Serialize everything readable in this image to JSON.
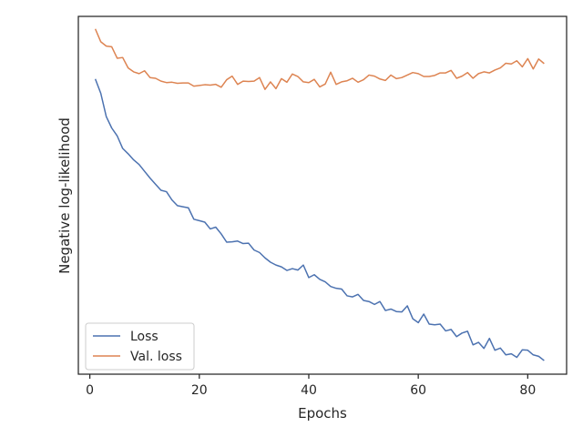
{
  "chart_data": {
    "type": "line",
    "title": "",
    "xlabel": "Epochs",
    "ylabel": "Negative log-likelihood",
    "xlim": [
      -2.1,
      87.1
    ],
    "ylim": [
      0,
      1
    ],
    "x_ticks": [
      0,
      20,
      40,
      60,
      80
    ],
    "y_ticks": [],
    "grid": false,
    "legend": {
      "placement": "lower-left",
      "entries": [
        "Loss",
        "Val. loss"
      ]
    },
    "x": [
      1,
      2,
      3,
      4,
      5,
      6,
      7,
      8,
      9,
      10,
      11,
      12,
      13,
      14,
      15,
      16,
      17,
      18,
      19,
      20,
      21,
      22,
      23,
      24,
      25,
      26,
      27,
      28,
      29,
      30,
      31,
      32,
      33,
      34,
      35,
      36,
      37,
      38,
      39,
      40,
      41,
      42,
      43,
      44,
      45,
      46,
      47,
      48,
      49,
      50,
      51,
      52,
      53,
      54,
      55,
      56,
      57,
      58,
      59,
      60,
      61,
      62,
      63,
      64,
      65,
      66,
      67,
      68,
      69,
      70,
      71,
      72,
      73,
      74,
      75,
      76,
      77,
      78,
      79,
      80,
      81,
      82,
      83
    ],
    "series": [
      {
        "name": "Loss",
        "color": "#4c72b0",
        "values": [
          0.825,
          0.785,
          0.72,
          0.688,
          0.666,
          0.631,
          0.616,
          0.599,
          0.586,
          0.567,
          0.548,
          0.531,
          0.514,
          0.51,
          0.487,
          0.471,
          0.468,
          0.465,
          0.433,
          0.429,
          0.425,
          0.406,
          0.411,
          0.392,
          0.369,
          0.37,
          0.372,
          0.365,
          0.366,
          0.347,
          0.34,
          0.325,
          0.313,
          0.305,
          0.3,
          0.29,
          0.295,
          0.291,
          0.305,
          0.27,
          0.278,
          0.265,
          0.258,
          0.245,
          0.24,
          0.238,
          0.219,
          0.216,
          0.223,
          0.206,
          0.203,
          0.195,
          0.203,
          0.178,
          0.182,
          0.175,
          0.174,
          0.191,
          0.155,
          0.144,
          0.168,
          0.14,
          0.138,
          0.14,
          0.121,
          0.125,
          0.105,
          0.115,
          0.12,
          0.082,
          0.089,
          0.072,
          0.1,
          0.067,
          0.073,
          0.054,
          0.057,
          0.047,
          0.068,
          0.067,
          0.054,
          0.05,
          0.038
        ]
      },
      {
        "name": "Val. loss",
        "color": "#dd8452",
        "values": [
          0.965,
          0.929,
          0.917,
          0.915,
          0.883,
          0.885,
          0.856,
          0.845,
          0.84,
          0.848,
          0.829,
          0.827,
          0.819,
          0.815,
          0.816,
          0.813,
          0.814,
          0.814,
          0.805,
          0.807,
          0.809,
          0.808,
          0.81,
          0.802,
          0.823,
          0.833,
          0.81,
          0.819,
          0.818,
          0.819,
          0.829,
          0.796,
          0.817,
          0.798,
          0.826,
          0.816,
          0.839,
          0.832,
          0.817,
          0.815,
          0.824,
          0.803,
          0.811,
          0.844,
          0.81,
          0.817,
          0.82,
          0.827,
          0.816,
          0.823,
          0.836,
          0.833,
          0.825,
          0.821,
          0.836,
          0.826,
          0.829,
          0.836,
          0.843,
          0.84,
          0.832,
          0.832,
          0.835,
          0.842,
          0.842,
          0.849,
          0.827,
          0.833,
          0.843,
          0.827,
          0.84,
          0.845,
          0.842,
          0.85,
          0.856,
          0.869,
          0.867,
          0.876,
          0.859,
          0.882,
          0.853,
          0.881,
          0.868
        ]
      }
    ]
  }
}
